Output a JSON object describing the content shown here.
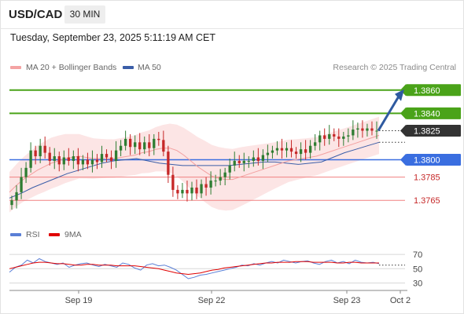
{
  "header": {
    "symbol": "USD/CAD",
    "timeframe": "30 MIN"
  },
  "timestamp": "Tuesday, September 23, 2025 5:11:19 AM CET",
  "legend": {
    "ma20": {
      "label": "MA 20 + Bollinger Bands",
      "color": "#f4a3a3"
    },
    "ma50": {
      "label": "MA 50",
      "color": "#3b5ea8"
    }
  },
  "copyright": "Research © 2025 Trading Central",
  "colors": {
    "up": "#2e7d32",
    "down": "#c62828",
    "support": "#f08080",
    "resistance": "#4aa319",
    "pivot": "#3a6ee0",
    "current": "#333333",
    "forecast": "#2f5aa0"
  },
  "chart_data": [
    {
      "type": "line",
      "title": "USD/CAD 30-minute",
      "x_ticks": [
        "Sep 19",
        "Sep 22",
        "Sep 23",
        "Oct 2"
      ],
      "ylim": [
        1.3755,
        1.387
      ],
      "price_levels": [
        {
          "label": "1.3860",
          "value": 1.386,
          "kind": "resistance"
        },
        {
          "label": "1.3840",
          "value": 1.384,
          "kind": "resistance"
        },
        {
          "label": "1.3825",
          "value": 1.3825,
          "kind": "current"
        },
        {
          "label": "1.3800",
          "value": 1.38,
          "kind": "pivot"
        },
        {
          "label": "1.3785",
          "value": 1.3785,
          "kind": "support"
        },
        {
          "label": "1.3765",
          "value": 1.3765,
          "kind": "support"
        }
      ],
      "series": [
        {
          "name": "Price",
          "values": [
            1.3765,
            1.3772,
            1.3785,
            1.3793,
            1.3808,
            1.3803,
            1.3812,
            1.3806,
            1.3799,
            1.3803,
            1.3796,
            1.3802,
            1.3799,
            1.3803,
            1.3796,
            1.38,
            1.3796,
            1.38,
            1.3798,
            1.3805,
            1.3802,
            1.3799,
            1.3808,
            1.3812,
            1.3818,
            1.3811,
            1.3815,
            1.3809,
            1.3815,
            1.381,
            1.3818,
            1.3817,
            1.3807,
            1.3787,
            1.3774,
            1.3771,
            1.3774,
            1.3771,
            1.3776,
            1.3771,
            1.3779,
            1.3776,
            1.3782,
            1.3782,
            1.3785,
            1.3789,
            1.3795,
            1.3799,
            1.3797,
            1.3799,
            1.3799,
            1.3802,
            1.3799,
            1.3804,
            1.3806,
            1.3808,
            1.381,
            1.3808,
            1.381,
            1.3807,
            1.3805,
            1.3809,
            1.3806,
            1.3812,
            1.3815,
            1.3821,
            1.3818,
            1.3822,
            1.382,
            1.3818,
            1.382,
            1.3821,
            1.3826,
            1.3827,
            1.3825,
            1.3827,
            1.3825,
            1.3825
          ]
        },
        {
          "name": "MA 20",
          "values": [
            1.3772,
            1.3778,
            1.3783,
            1.3787,
            1.3791,
            1.3794,
            1.3797,
            1.3799,
            1.3801,
            1.3802,
            1.3803,
            1.3802,
            1.3801,
            1.3801,
            1.3801,
            1.3801,
            1.3802,
            1.3803,
            1.3804,
            1.3806,
            1.3807,
            1.3809,
            1.381,
            1.381,
            1.3808,
            1.3804,
            1.3799,
            1.3794,
            1.379,
            1.3786,
            1.3784,
            1.3783,
            1.3783,
            1.3785,
            1.3787,
            1.3789,
            1.3791,
            1.3793,
            1.3795,
            1.3797,
            1.3799,
            1.38,
            1.3801,
            1.3802,
            1.3803,
            1.3805,
            1.3807,
            1.3809,
            1.3811,
            1.3813,
            1.3815,
            1.3817,
            1.3819,
            1.3821
          ]
        },
        {
          "name": "MA 50",
          "values": [
            1.3767,
            1.3771,
            1.3776,
            1.378,
            1.3784,
            1.3788,
            1.3791,
            1.3794,
            1.3797,
            1.3799,
            1.38,
            1.3801,
            1.3799,
            1.3797,
            1.3796,
            1.3795,
            1.3795,
            1.3795,
            1.3795,
            1.3795,
            1.3796,
            1.3797,
            1.3798,
            1.3798,
            1.3797,
            1.3796,
            1.3797,
            1.3798,
            1.3802,
            1.3806,
            1.3809,
            1.3812,
            1.3815
          ]
        }
      ]
    },
    {
      "type": "line",
      "title": "RSI",
      "ylim": [
        25,
        80
      ],
      "y_ticks": [
        "70",
        "50",
        "30"
      ],
      "series": [
        {
          "name": "RSI",
          "color": "#5a7fd6",
          "values": [
            45,
            52,
            55,
            62,
            58,
            64,
            60,
            58,
            56,
            58,
            52,
            55,
            57,
            58,
            55,
            53,
            56,
            54,
            52,
            58,
            56,
            51,
            48,
            55,
            57,
            54,
            55,
            52,
            48,
            42,
            36,
            38,
            41,
            42,
            44,
            46,
            48,
            50,
            52,
            55,
            54,
            57,
            55,
            58,
            60,
            58,
            62,
            60,
            58,
            60,
            61,
            58,
            56,
            60,
            62,
            58,
            60,
            57,
            62,
            59,
            58,
            59,
            57
          ]
        },
        {
          "name": "9MA",
          "color": "#e00000",
          "values": [
            50,
            52,
            54,
            56,
            58,
            59,
            59,
            58,
            57,
            57,
            56,
            55,
            55,
            56,
            56,
            55,
            55,
            55,
            54,
            54,
            54,
            54,
            53,
            52,
            51,
            50,
            48,
            46,
            44,
            43,
            42,
            43,
            44,
            46,
            48,
            49,
            51,
            52,
            53,
            54,
            55,
            56,
            57,
            58,
            58,
            59,
            59,
            59,
            60,
            60,
            60,
            59,
            59,
            59,
            59,
            58,
            58,
            59,
            59,
            58,
            58,
            58,
            58
          ]
        }
      ]
    }
  ]
}
